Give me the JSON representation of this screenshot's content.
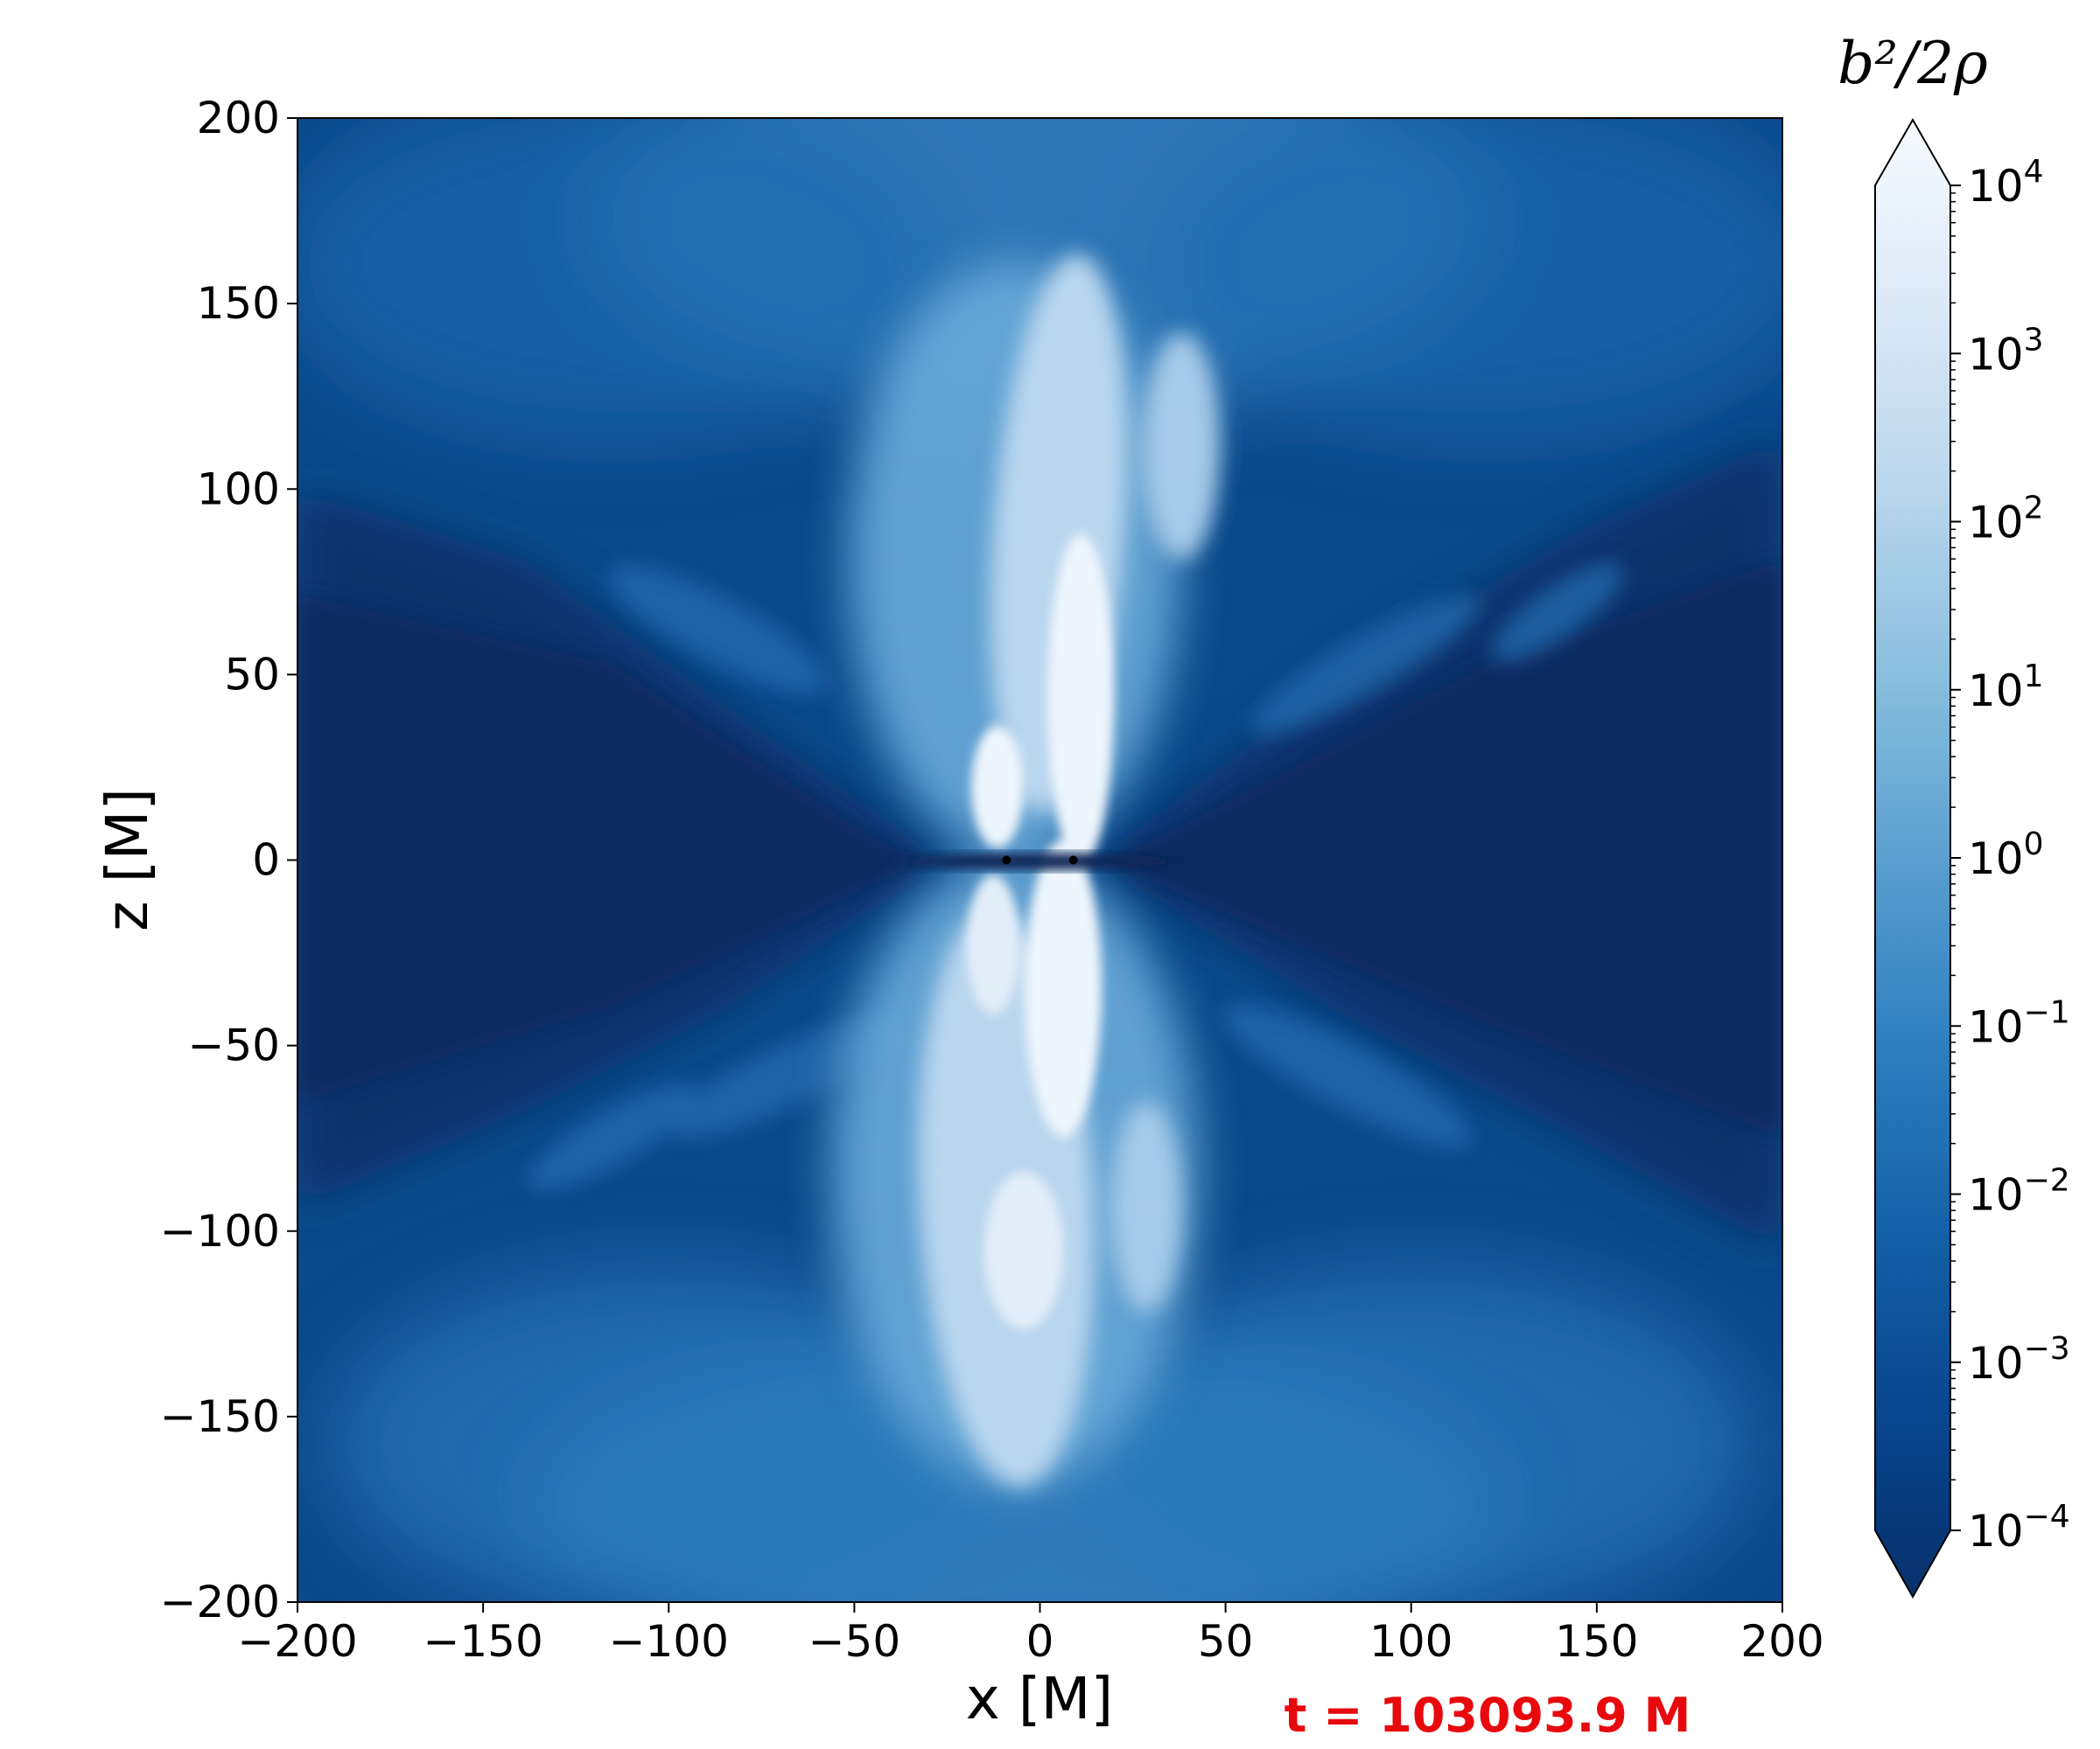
{
  "chart_data": {
    "type": "heatmap",
    "title": "",
    "xlabel": "x [M]",
    "ylabel": "z [M]",
    "xlim": [
      -200,
      200
    ],
    "ylim": [
      -200,
      200
    ],
    "xticks": [
      -200,
      -150,
      -100,
      -50,
      0,
      50,
      100,
      150,
      200
    ],
    "yticks": [
      -200,
      -150,
      -100,
      -50,
      0,
      50,
      100,
      150,
      200
    ],
    "xtick_labels": [
      "−200",
      "−150",
      "−100",
      "−50",
      "0",
      "50",
      "100",
      "150",
      "200"
    ],
    "ytick_labels": [
      "−200",
      "−150",
      "−100",
      "−50",
      "0",
      "50",
      "100",
      "150",
      "200"
    ],
    "grid": false,
    "colorbar": {
      "label": "b²/2ρ",
      "scale": "log",
      "range": [
        0.0001,
        10000
      ],
      "extend": "both",
      "colormap": "Blues_r",
      "ticks": [
        {
          "base": "10",
          "exp": "4",
          "value": 10000
        },
        {
          "base": "10",
          "exp": "3",
          "value": 1000
        },
        {
          "base": "10",
          "exp": "2",
          "value": 100
        },
        {
          "base": "10",
          "exp": "1",
          "value": 10
        },
        {
          "base": "10",
          "exp": "0",
          "value": 1
        },
        {
          "base": "10",
          "exp": "−1",
          "value": 0.1
        },
        {
          "base": "10",
          "exp": "−2",
          "value": 0.01
        },
        {
          "base": "10",
          "exp": "−3",
          "value": 0.001
        },
        {
          "base": "10",
          "exp": "−4",
          "value": 0.0001
        }
      ]
    },
    "black_holes": [
      {
        "x": -9,
        "z": 0
      },
      {
        "x": 9,
        "z": 0
      }
    ],
    "annotation": "t = 103093.9 M"
  },
  "colors": {
    "dark": "#08306b",
    "mid": "#2f7fc0",
    "light": "#a9cde6",
    "white": "#f7fbff",
    "annotation": "#e8090d"
  }
}
